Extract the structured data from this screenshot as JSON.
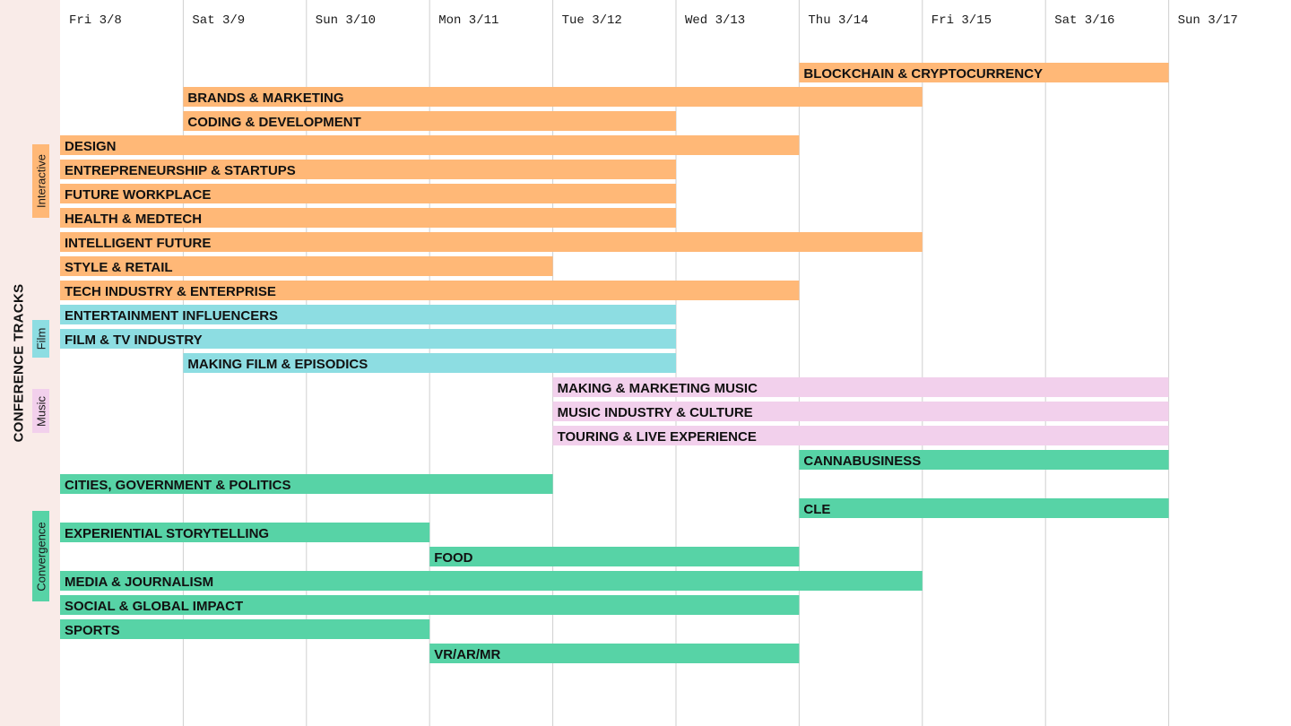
{
  "chart_data": {
    "type": "timeline",
    "title": "CONFERENCE TRACKS",
    "days": [
      "Fri 3/8",
      "Sat 3/9",
      "Sun 3/10",
      "Mon 3/11",
      "Tue 3/12",
      "Wed 3/13",
      "Thu 3/14",
      "Fri 3/15",
      "Sat 3/16",
      "Sun 3/17"
    ],
    "groups": [
      {
        "name": "Interactive",
        "color": "#ffb877"
      },
      {
        "name": "Film",
        "color": "#8ddde2"
      },
      {
        "name": "Music",
        "color": "#f2d0ec"
      },
      {
        "name": "Convergence",
        "color": "#57d3a6"
      }
    ],
    "tracks": [
      {
        "name": "BLOCKCHAIN & CRYPTOCURRENCY",
        "group": "Interactive",
        "start": "Thu 3/14",
        "end": "Sat 3/16"
      },
      {
        "name": "BRANDS & MARKETING",
        "group": "Interactive",
        "start": "Sat 3/9",
        "end": "Thu 3/14"
      },
      {
        "name": "CODING & DEVELOPMENT",
        "group": "Interactive",
        "start": "Sat 3/9",
        "end": "Tue 3/12"
      },
      {
        "name": "DESIGN",
        "group": "Interactive",
        "start": "Fri 3/8",
        "end": "Wed 3/13"
      },
      {
        "name": "ENTREPRENEURSHIP & STARTUPS",
        "group": "Interactive",
        "start": "Fri 3/8",
        "end": "Tue 3/12"
      },
      {
        "name": "FUTURE WORKPLACE",
        "group": "Interactive",
        "start": "Fri 3/8",
        "end": "Tue 3/12"
      },
      {
        "name": "HEALTH & MEDTECH",
        "group": "Interactive",
        "start": "Fri 3/8",
        "end": "Tue 3/12"
      },
      {
        "name": "INTELLIGENT FUTURE",
        "group": "Interactive",
        "start": "Fri 3/8",
        "end": "Thu 3/14"
      },
      {
        "name": "STYLE & RETAIL",
        "group": "Interactive",
        "start": "Fri 3/8",
        "end": "Mon 3/11"
      },
      {
        "name": "TECH INDUSTRY & ENTERPRISE",
        "group": "Interactive",
        "start": "Fri 3/8",
        "end": "Wed 3/13"
      },
      {
        "name": "ENTERTAINMENT INFLUENCERS",
        "group": "Film",
        "start": "Fri 3/8",
        "end": "Tue 3/12"
      },
      {
        "name": "FILM & TV INDUSTRY",
        "group": "Film",
        "start": "Fri 3/8",
        "end": "Tue 3/12"
      },
      {
        "name": "MAKING FILM & EPISODICS",
        "group": "Film",
        "start": "Sat 3/9",
        "end": "Tue 3/12"
      },
      {
        "name": "MAKING & MARKETING MUSIC",
        "group": "Music",
        "start": "Tue 3/12",
        "end": "Sat 3/16"
      },
      {
        "name": "MUSIC INDUSTRY & CULTURE",
        "group": "Music",
        "start": "Tue 3/12",
        "end": "Sat 3/16"
      },
      {
        "name": "TOURING & LIVE EXPERIENCE",
        "group": "Music",
        "start": "Tue 3/12",
        "end": "Sat 3/16"
      },
      {
        "name": "CANNABUSINESS",
        "group": "Convergence",
        "start": "Thu 3/14",
        "end": "Sat 3/16"
      },
      {
        "name": "CITIES, GOVERNMENT & POLITICS",
        "group": "Convergence",
        "start": "Fri 3/8",
        "end": "Mon 3/11"
      },
      {
        "name": "CLE",
        "group": "Convergence",
        "start": "Thu 3/14",
        "end": "Sat 3/16"
      },
      {
        "name": "EXPERIENTIAL STORYTELLING",
        "group": "Convergence",
        "start": "Fri 3/8",
        "end": "Sun 3/10"
      },
      {
        "name": "FOOD",
        "group": "Convergence",
        "start": "Mon 3/11",
        "end": "Wed 3/13"
      },
      {
        "name": "MEDIA & JOURNALISM",
        "group": "Convergence",
        "start": "Fri 3/8",
        "end": "Thu 3/14"
      },
      {
        "name": "SOCIAL & GLOBAL IMPACT",
        "group": "Convergence",
        "start": "Fri 3/8",
        "end": "Wed 3/13"
      },
      {
        "name": "SPORTS",
        "group": "Convergence",
        "start": "Fri 3/8",
        "end": "Sun 3/10"
      },
      {
        "name": "VR/AR/MR",
        "group": "Convergence",
        "start": "Mon 3/11",
        "end": "Wed 3/13"
      }
    ],
    "gridlines": true,
    "legend": "left"
  }
}
